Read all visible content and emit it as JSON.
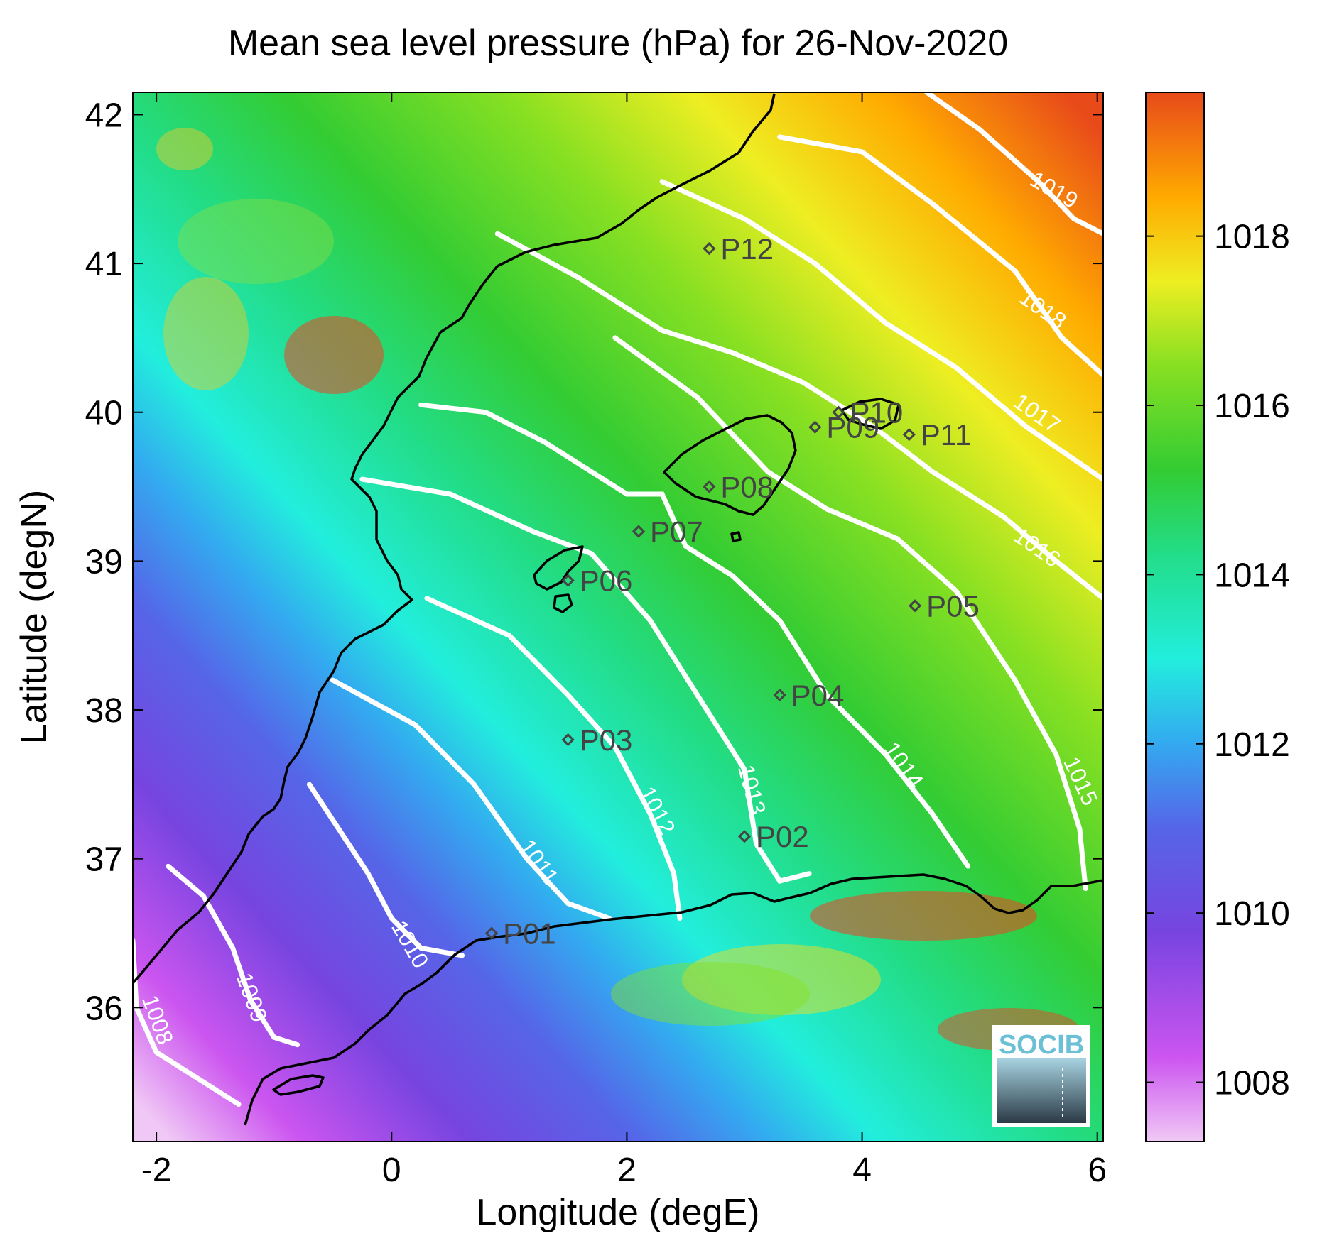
{
  "title": "Mean sea level pressure (hPa) for 26-Nov-2020",
  "xlabel": "Longitude (degE)",
  "ylabel": "Latitude (degN)",
  "xlim": [
    -2.2,
    6.05
  ],
  "ylim": [
    35.1,
    42.15
  ],
  "xticks": [
    -2,
    0,
    2,
    4,
    6
  ],
  "yticks": [
    36,
    37,
    38,
    39,
    40,
    41,
    42
  ],
  "colorbar": {
    "range": [
      1007.3,
      1019.7
    ],
    "ticks": [
      1008,
      1010,
      1012,
      1014,
      1016,
      1018
    ]
  },
  "logo_text": "SOCIB",
  "chart_data": {
    "type": "heatmap",
    "title": "Mean sea level pressure (hPa) for 26-Nov-2020",
    "xlabel": "Longitude (degE)",
    "ylabel": "Latitude (degN)",
    "stations": [
      {
        "label": "P01",
        "lon": 0.85,
        "lat": 36.5
      },
      {
        "label": "P02",
        "lon": 3.0,
        "lat": 37.15
      },
      {
        "label": "P03",
        "lon": 1.5,
        "lat": 37.8
      },
      {
        "label": "P04",
        "lon": 3.3,
        "lat": 38.1
      },
      {
        "label": "P05",
        "lon": 4.45,
        "lat": 38.7
      },
      {
        "label": "P06",
        "lon": 1.5,
        "lat": 38.87
      },
      {
        "label": "P07",
        "lon": 2.1,
        "lat": 39.2
      },
      {
        "label": "P08",
        "lon": 2.7,
        "lat": 39.5
      },
      {
        "label": "P09",
        "lon": 3.6,
        "lat": 39.9
      },
      {
        "label": "P10",
        "lon": 3.8,
        "lat": 40.0
      },
      {
        "label": "P11",
        "lon": 4.4,
        "lat": 39.85
      },
      {
        "label": "P12",
        "lon": 2.7,
        "lat": 41.1
      }
    ],
    "isobars": [
      {
        "label": "1008",
        "label_lon": -2.05,
        "label_lat": 35.9,
        "rot": 70,
        "points": [
          [
            -2.2,
            36.45
          ],
          [
            -2.17,
            36.0
          ],
          [
            -2.0,
            35.7
          ],
          [
            -1.7,
            35.55
          ],
          [
            -1.3,
            35.35
          ]
        ]
      },
      {
        "label": "1009",
        "label_lon": -1.25,
        "label_lat": 36.05,
        "rot": 70,
        "points": [
          [
            -1.9,
            36.95
          ],
          [
            -1.6,
            36.75
          ],
          [
            -1.35,
            36.4
          ],
          [
            -1.2,
            36.05
          ],
          [
            -1.0,
            35.8
          ],
          [
            -0.8,
            35.75
          ]
        ]
      },
      {
        "label": "1010",
        "label_lon": 0.1,
        "label_lat": 36.4,
        "rot": 60,
        "points": [
          [
            -0.7,
            37.5
          ],
          [
            -0.45,
            37.2
          ],
          [
            -0.2,
            36.9
          ],
          [
            0.0,
            36.6
          ],
          [
            0.25,
            36.4
          ],
          [
            0.6,
            36.35
          ]
        ]
      },
      {
        "label": "1011",
        "label_lon": 1.2,
        "label_lat": 36.95,
        "rot": 55,
        "points": [
          [
            -0.5,
            38.2
          ],
          [
            0.2,
            37.9
          ],
          [
            0.7,
            37.5
          ],
          [
            1.15,
            37.0
          ],
          [
            1.5,
            36.7
          ],
          [
            1.85,
            36.6
          ]
        ]
      },
      {
        "label": "1012",
        "label_lon": 2.2,
        "label_lat": 37.3,
        "rot": 62,
        "points": [
          [
            0.3,
            38.75
          ],
          [
            1.0,
            38.5
          ],
          [
            1.5,
            38.1
          ],
          [
            1.9,
            37.75
          ],
          [
            2.2,
            37.3
          ],
          [
            2.4,
            36.9
          ],
          [
            2.45,
            36.6
          ]
        ]
      },
      {
        "label": "1013",
        "label_lon": 3.0,
        "label_lat": 37.45,
        "rot": 75,
        "points": [
          [
            -0.25,
            39.55
          ],
          [
            0.5,
            39.45
          ],
          [
            1.2,
            39.2
          ],
          [
            1.7,
            39.05
          ],
          [
            2.2,
            38.6
          ],
          [
            2.6,
            38.1
          ],
          [
            3.0,
            37.6
          ],
          [
            3.1,
            37.1
          ],
          [
            3.3,
            36.85
          ],
          [
            3.55,
            36.9
          ]
        ]
      },
      {
        "label": "1014",
        "label_lon": 4.3,
        "label_lat": 37.6,
        "rot": 55,
        "points": [
          [
            0.25,
            40.05
          ],
          [
            0.8,
            40.0
          ],
          [
            1.3,
            39.8
          ],
          [
            2.0,
            39.45
          ],
          [
            2.3,
            39.45
          ],
          [
            2.5,
            39.1
          ],
          [
            2.9,
            38.9
          ],
          [
            3.3,
            38.6
          ],
          [
            3.7,
            38.1
          ],
          [
            4.2,
            37.7
          ],
          [
            4.6,
            37.3
          ],
          [
            4.9,
            36.95
          ]
        ]
      },
      {
        "label": "1015",
        "label_lon": 5.8,
        "label_lat": 37.5,
        "rot": 65,
        "points": [
          [
            1.9,
            40.5
          ],
          [
            2.6,
            40.1
          ],
          [
            3.2,
            39.6
          ],
          [
            3.7,
            39.35
          ],
          [
            4.3,
            39.15
          ],
          [
            4.8,
            38.8
          ],
          [
            5.3,
            38.2
          ],
          [
            5.65,
            37.7
          ],
          [
            5.85,
            37.2
          ],
          [
            5.9,
            36.8
          ]
        ]
      },
      {
        "label": "1016",
        "label_lon": 5.45,
        "label_lat": 39.05,
        "rot": 35,
        "points": [
          [
            0.9,
            41.2
          ],
          [
            1.6,
            40.9
          ],
          [
            2.3,
            40.55
          ],
          [
            2.9,
            40.4
          ],
          [
            3.5,
            40.2
          ],
          [
            4.1,
            39.9
          ],
          [
            4.6,
            39.6
          ],
          [
            5.2,
            39.3
          ],
          [
            5.65,
            39.0
          ],
          [
            6.05,
            38.75
          ]
        ]
      },
      {
        "label": "1017",
        "label_lon": 5.45,
        "label_lat": 39.95,
        "rot": 35,
        "points": [
          [
            2.3,
            41.55
          ],
          [
            3.0,
            41.3
          ],
          [
            3.6,
            41.0
          ],
          [
            4.2,
            40.6
          ],
          [
            4.8,
            40.3
          ],
          [
            5.4,
            39.9
          ],
          [
            6.05,
            39.55
          ]
        ]
      },
      {
        "label": "1018",
        "label_lon": 5.5,
        "label_lat": 40.65,
        "rot": 35,
        "points": [
          [
            3.3,
            41.85
          ],
          [
            4.0,
            41.75
          ],
          [
            4.6,
            41.4
          ],
          [
            5.3,
            40.95
          ],
          [
            5.7,
            40.5
          ],
          [
            6.05,
            40.25
          ]
        ]
      },
      {
        "label": "1019",
        "label_lon": 5.6,
        "label_lat": 41.45,
        "rot": 30,
        "points": [
          [
            4.55,
            42.15
          ],
          [
            5.0,
            41.9
          ],
          [
            5.5,
            41.55
          ],
          [
            5.8,
            41.3
          ],
          [
            6.05,
            41.2
          ]
        ]
      }
    ]
  }
}
